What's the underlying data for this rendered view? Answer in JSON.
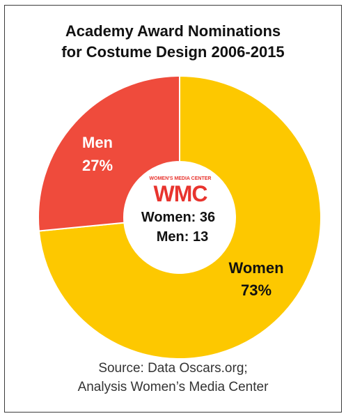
{
  "chart_data": {
    "type": "pie",
    "title_lines": [
      "Academy Award Nominations",
      "for Costume Design 2006-2015"
    ],
    "slices": [
      {
        "label": "Women",
        "percent_label": "73%",
        "value": 36,
        "color": "#FDC800"
      },
      {
        "label": "Men",
        "percent_label": "27%",
        "value": 13,
        "color": "#EF4B3C"
      }
    ],
    "center": {
      "logo_top_text": "WOMEN'S MEDIA CENTER",
      "logo_text": "WMC",
      "lines": [
        "Women: 36",
        "Men: 13"
      ]
    },
    "source_lines": [
      "Source: Data Oscars.org;",
      "Analysis Women’s Media Center"
    ]
  },
  "colors": {
    "logo_red": "#E8342E",
    "logo_orange": "#F6A11C"
  }
}
